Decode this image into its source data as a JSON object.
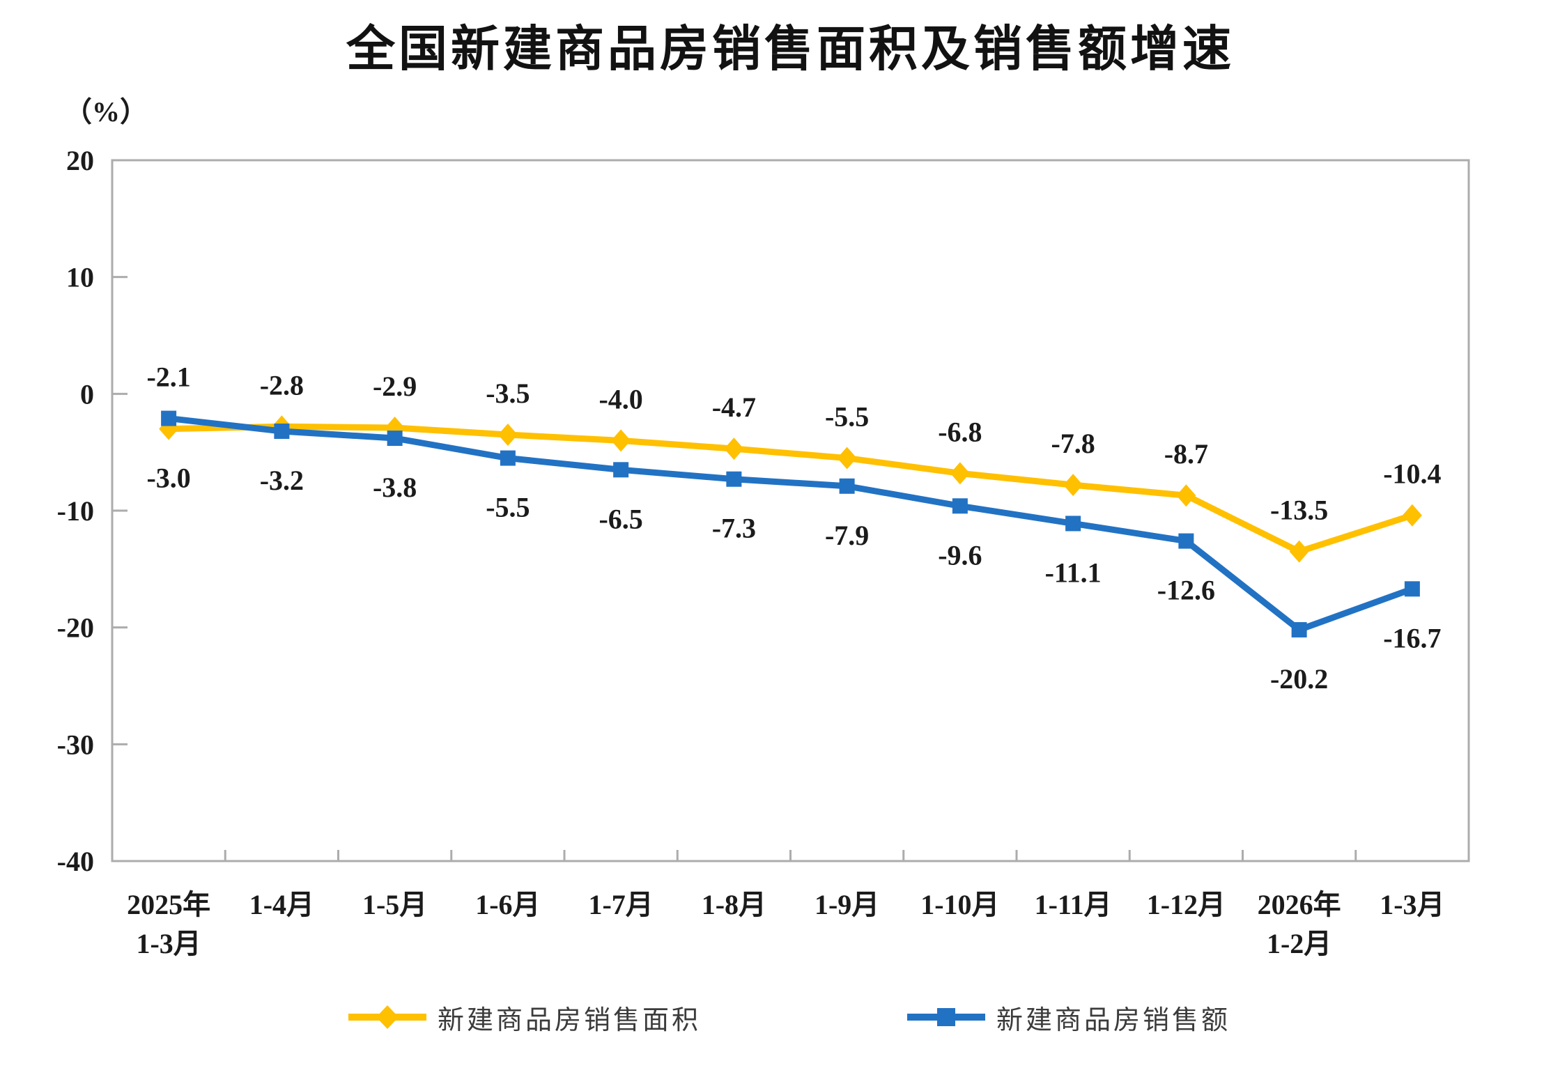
{
  "title": "全国新建商品房销售面积及销售额增速",
  "y_axis_unit": "（%）",
  "axis_color": "#ACACAC",
  "text_color": "#1B1B1B",
  "chart_data": {
    "type": "line",
    "title": "全国新建商品房销售面积及销售额增速",
    "ylabel": "（%）",
    "categories": [
      "2025年1-3月",
      "1-4月",
      "1-5月",
      "1-6月",
      "1-7月",
      "1-8月",
      "1-9月",
      "1-10月",
      "1-11月",
      "1-12月",
      "2026年1-2月",
      "1-3月"
    ],
    "categories_lines": [
      [
        "2025年",
        "1-3月"
      ],
      [
        "1-4月"
      ],
      [
        "1-5月"
      ],
      [
        "1-6月"
      ],
      [
        "1-7月"
      ],
      [
        "1-8月"
      ],
      [
        "1-9月"
      ],
      [
        "1-10月"
      ],
      [
        "1-11月"
      ],
      [
        "1-12月"
      ],
      [
        "2026年",
        "1-2月"
      ],
      [
        "1-3月"
      ]
    ],
    "series": [
      {
        "name": "新建商品房销售面积",
        "color": "#FFC000",
        "marker": "diamond",
        "values": [
          -3.0,
          -2.8,
          -2.9,
          -3.5,
          -4.0,
          -4.7,
          -5.5,
          -6.8,
          -7.8,
          -8.7,
          -13.5,
          -10.4
        ]
      },
      {
        "name": "新建商品房销售额",
        "color": "#2272C4",
        "marker": "square",
        "values": [
          -2.1,
          -3.2,
          -3.8,
          -5.5,
          -6.5,
          -7.3,
          -7.9,
          -9.6,
          -11.1,
          -12.6,
          -20.2,
          -16.7
        ]
      }
    ],
    "ylim": [
      -40,
      20
    ],
    "ytick_step": 10,
    "yticks": [
      20,
      10,
      0,
      -10,
      -20,
      -30,
      -40
    ],
    "grid": false,
    "data_labels": true,
    "legend_position": "bottom"
  }
}
